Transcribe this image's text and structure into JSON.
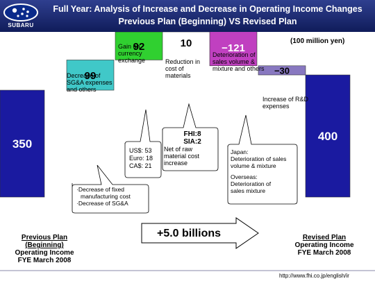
{
  "header": {
    "logo_text": "SUBARU",
    "title_line1": "Full Year: Analysis of Increase and Decrease in Operating Income Changes",
    "title_line2": "Previous Plan (Beginning) VS Revised Plan"
  },
  "unit_label": "(100 million yen)",
  "chart_data": {
    "type": "bar",
    "subtype": "waterfall",
    "title": "Full Year: Analysis of Increase and Decrease in Operating Income Changes",
    "subtitle": "Previous Plan (Beginning) VS Revised Plan",
    "unit": "(100 million yen)",
    "categories": [
      "Previous Plan (Beginning)",
      "Decrease of SG&A expenses and others",
      "Gain on currency exchange",
      "Reduction in cost of materials",
      "Deterioration of sales volume & mixture and others",
      "Increase of R&D expenses",
      "Revised Plan"
    ],
    "values": [
      350,
      99,
      92,
      10,
      -121,
      -30,
      400
    ],
    "value_labels": [
      "350",
      "99",
      "92",
      "10",
      "−121",
      "−30",
      "400"
    ],
    "colors": [
      "#1a1aa0",
      "#40c8c8",
      "#30d030",
      "#d0d060",
      "#c040c0",
      "#8878c0",
      "#1a1aa0"
    ],
    "total_change": "+5.0 billions"
  },
  "labels": {
    "sga": "Decrease of SG&A expenses and others",
    "currency": "Gain on currency exchange",
    "materials": "Reduction in cost of materials",
    "sales": "Deterioration of sales volume & mixture and others",
    "rnd": "Increase of R&D expenses"
  },
  "callouts": {
    "sga_line1": "·Decrease of fixed",
    "sga_line2": "manufacturing cost",
    "sga_line3": "·Decrease of SG&A",
    "fx_us": "US$: 53",
    "fx_euro": "Euro: 18",
    "fx_cad": "CA$: 21",
    "fhi": "FHI:8",
    "sia": "SIA:2",
    "net_raw_1": "Net of raw",
    "net_raw_2": "material cost",
    "net_raw_3": "increase",
    "japan_1": "Japan:",
    "japan_2": "Deterioration of sales",
    "japan_3": "volume & mixture",
    "overseas_1": "Overseas:",
    "overseas_2": "Deterioration of",
    "overseas_3": "sales mixture"
  },
  "bottom": {
    "left_line1": "Previous Plan",
    "left_line2": "(Beginning)",
    "left_line3": "Operating Income",
    "left_line4": "FYE March 2008",
    "right_line1": "Revised Plan",
    "right_line2": "Operating Income",
    "right_line3": "FYE March 2008"
  },
  "footer": {
    "url": "http://www.fhi.co.jp/english/ir"
  }
}
